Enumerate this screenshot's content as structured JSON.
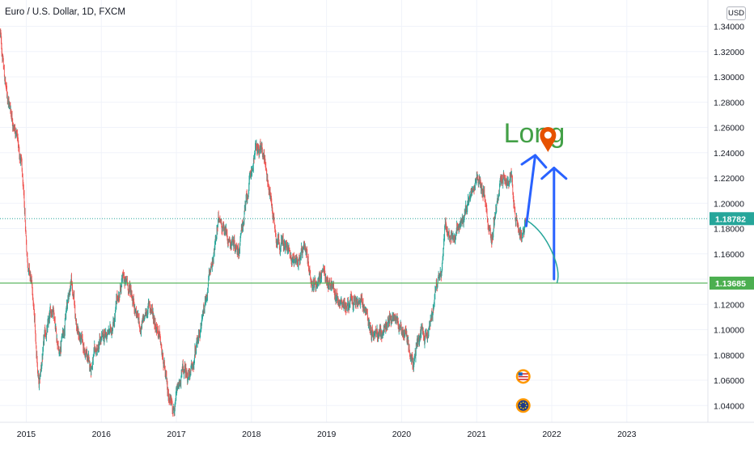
{
  "chart_data": {
    "type": "candlestick",
    "title": "Euro / U.S. Dollar, 1D, FXCM",
    "currency": "USD",
    "x_ticks": [
      "2015",
      "2016",
      "2017",
      "2018",
      "2019",
      "2020",
      "2021",
      "2022",
      "2023"
    ],
    "y_ticks": [
      "1.34000",
      "1.32000",
      "1.30000",
      "1.28000",
      "1.26000",
      "1.24000",
      "1.22000",
      "1.20000",
      "1.18000",
      "1.16000",
      "1.14000",
      "1.12000",
      "1.10000",
      "1.08000",
      "1.06000",
      "1.04000"
    ],
    "ylim": [
      1.028,
      1.348
    ],
    "xlim": [
      2014.67,
      2024.1
    ],
    "price_labels": [
      {
        "value": 1.18782,
        "label": "1.18782",
        "color": "#26a69a",
        "style": "dotted"
      },
      {
        "value": 1.13685,
        "label": "1.13685",
        "color": "#4caf50",
        "style": "solid"
      }
    ],
    "up_color": "#26a69a",
    "down_color": "#ef5350",
    "path": [
      [
        2014.67,
        1.335
      ],
      [
        2014.75,
        1.29
      ],
      [
        2014.85,
        1.265
      ],
      [
        2014.95,
        1.235
      ],
      [
        2015.03,
        1.16
      ],
      [
        2015.1,
        1.13
      ],
      [
        2015.19,
        1.055
      ],
      [
        2015.26,
        1.09
      ],
      [
        2015.38,
        1.12
      ],
      [
        2015.46,
        1.08
      ],
      [
        2015.62,
        1.14
      ],
      [
        2015.7,
        1.1
      ],
      [
        2015.87,
        1.07
      ],
      [
        2016.02,
        1.09
      ],
      [
        2016.15,
        1.1
      ],
      [
        2016.3,
        1.14
      ],
      [
        2016.42,
        1.13
      ],
      [
        2016.55,
        1.1
      ],
      [
        2016.66,
        1.12
      ],
      [
        2016.78,
        1.1
      ],
      [
        2016.9,
        1.05
      ],
      [
        2017.0,
        1.04
      ],
      [
        2017.1,
        1.065
      ],
      [
        2017.22,
        1.065
      ],
      [
        2017.34,
        1.1
      ],
      [
        2017.45,
        1.14
      ],
      [
        2017.6,
        1.19
      ],
      [
        2017.7,
        1.175
      ],
      [
        2017.85,
        1.165
      ],
      [
        2017.95,
        1.2
      ],
      [
        2018.08,
        1.245
      ],
      [
        2018.2,
        1.235
      ],
      [
        2018.35,
        1.175
      ],
      [
        2018.48,
        1.165
      ],
      [
        2018.6,
        1.155
      ],
      [
        2018.72,
        1.16
      ],
      [
        2018.85,
        1.135
      ],
      [
        2018.95,
        1.145
      ],
      [
        2019.08,
        1.135
      ],
      [
        2019.2,
        1.122
      ],
      [
        2019.35,
        1.12
      ],
      [
        2019.5,
        1.12
      ],
      [
        2019.62,
        1.1
      ],
      [
        2019.72,
        1.095
      ],
      [
        2019.85,
        1.105
      ],
      [
        2019.95,
        1.115
      ],
      [
        2020.1,
        1.09
      ],
      [
        2020.18,
        1.07
      ],
      [
        2020.25,
        1.095
      ],
      [
        2020.35,
        1.09
      ],
      [
        2020.45,
        1.125
      ],
      [
        2020.55,
        1.15
      ],
      [
        2020.6,
        1.18
      ],
      [
        2020.72,
        1.175
      ],
      [
        2020.85,
        1.185
      ],
      [
        2020.95,
        1.215
      ],
      [
        2021.02,
        1.225
      ],
      [
        2021.12,
        1.205
      ],
      [
        2021.22,
        1.175
      ],
      [
        2021.32,
        1.21
      ],
      [
        2021.4,
        1.22
      ],
      [
        2021.48,
        1.215
      ],
      [
        2021.55,
        1.185
      ],
      [
        2021.62,
        1.175
      ],
      [
        2021.67,
        1.18
      ]
    ],
    "annotations": [
      {
        "kind": "text",
        "text": "Long",
        "color": "#43a047",
        "x": 2021.38,
        "y": 1.256
      },
      {
        "kind": "arrow",
        "color": "#2962ff",
        "from": [
          2021.68,
          1.182
        ],
        "to": [
          2021.8,
          1.238
        ]
      },
      {
        "kind": "arrow",
        "color": "#2962ff",
        "from": [
          2022.05,
          1.14
        ],
        "to": [
          2022.05,
          1.228
        ]
      },
      {
        "kind": "curve",
        "color": "#26a69a",
        "points": [
          [
            2021.7,
            1.186
          ],
          [
            2021.9,
            1.178
          ],
          [
            2022.02,
            1.162
          ],
          [
            2022.09,
            1.137
          ]
        ]
      },
      {
        "kind": "pin",
        "color": "#e65100",
        "x": 2021.97,
        "y": 1.252
      }
    ],
    "event_markers": [
      {
        "kind": "us-flag-icon",
        "x": 2021.64,
        "y": 1.063
      },
      {
        "kind": "eu-flag-icon",
        "x": 2021.64,
        "y": 1.04
      }
    ]
  }
}
